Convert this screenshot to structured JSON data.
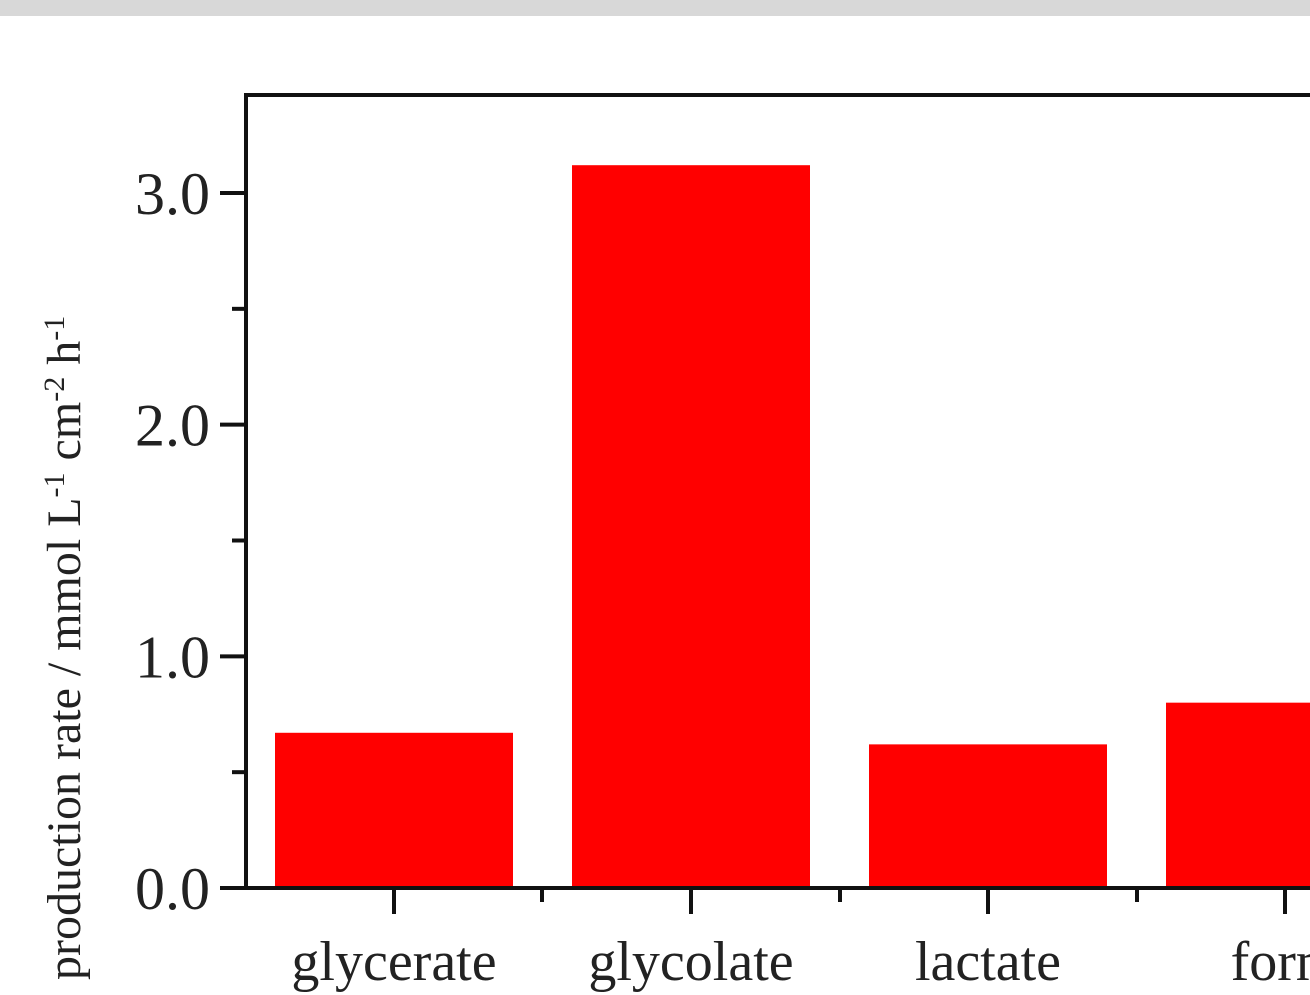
{
  "chart_data": {
    "type": "bar",
    "categories": [
      "glycerate",
      "glycolate",
      "lactate",
      "form"
    ],
    "values": [
      0.67,
      3.12,
      0.62,
      0.8
    ],
    "title": "",
    "xlabel": "",
    "ylabel": "production rate / mmol L⁻¹ cm⁻² h⁻¹",
    "ylabel_parts": [
      {
        "text": "production rate / mmol L",
        "sup": false
      },
      {
        "text": "-1",
        "sup": true
      },
      {
        "text": " cm",
        "sup": false
      },
      {
        "text": "-2",
        "sup": true
      },
      {
        "text": " h",
        "sup": false
      },
      {
        "text": "-1",
        "sup": true
      }
    ],
    "yticks": [
      "0.0",
      "1.0",
      "2.0",
      "3.0"
    ],
    "yminor": [
      0.5,
      1.5,
      2.5
    ],
    "ylim": [
      0,
      3.4
    ],
    "bar_color": "#ff0000",
    "grid": false,
    "legend": "none"
  }
}
